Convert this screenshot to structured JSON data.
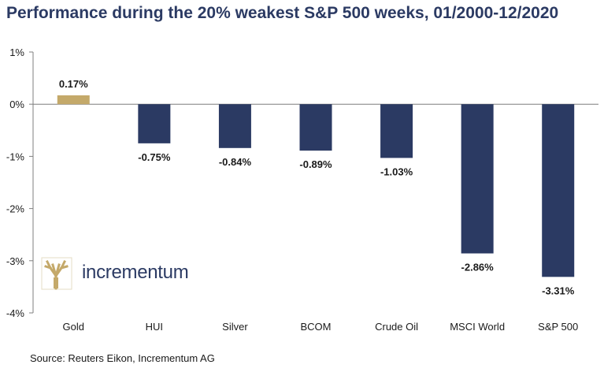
{
  "title": "Performance during the 20% weakest S&P 500 weeks, 01/2000-12/2020",
  "source": "Source: Reuters Eikon, Incrementum AG",
  "logo": {
    "text": "incrementum"
  },
  "colors": {
    "gold": "#c4a96a",
    "navy": "#2b3a63",
    "axis": "#7f7f7f"
  },
  "chart_data": {
    "type": "bar",
    "categories": [
      "Gold",
      "HUI",
      "Silver",
      "BCOM",
      "Crude Oil",
      "MSCI World",
      "S&P 500"
    ],
    "values": [
      0.17,
      -0.75,
      -0.84,
      -0.89,
      -1.03,
      -2.86,
      -3.31
    ],
    "data_labels": [
      "0.17%",
      "-0.75%",
      "-0.84%",
      "-0.89%",
      "-1.03%",
      "-2.86%",
      "-3.31%"
    ],
    "bar_colors": [
      "#c4a96a",
      "#2b3a63",
      "#2b3a63",
      "#2b3a63",
      "#2b3a63",
      "#2b3a63",
      "#2b3a63"
    ],
    "yticks": [
      1,
      0,
      -1,
      -2,
      -3,
      -4
    ],
    "ytick_labels": [
      "1%",
      "0%",
      "-1%",
      "-2%",
      "-3%",
      "-4%"
    ],
    "ylim": [
      -4,
      1
    ],
    "grid": false,
    "legend": "none"
  }
}
